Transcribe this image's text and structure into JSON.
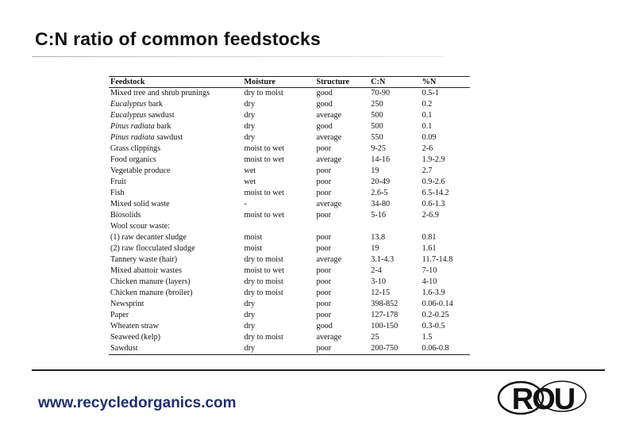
{
  "title": "C:N ratio of common feedstocks",
  "table": {
    "headers": [
      "Feedstock",
      "Moisture",
      "Structure",
      "C:N",
      "%N"
    ],
    "rows": [
      {
        "pre": "Mixed tree and shrub prunings",
        "italic": "",
        "post": "",
        "moisture": "dry to moist",
        "structure": "good",
        "cn": "70-90",
        "n": "0.5-1"
      },
      {
        "pre": "",
        "italic": "Eucalyptus",
        "post": " bark",
        "moisture": "dry",
        "structure": "good",
        "cn": "250",
        "n": "0.2"
      },
      {
        "pre": "",
        "italic": "Eucalyptus",
        "post": " sawdust",
        "moisture": "dry",
        "structure": "average",
        "cn": "500",
        "n": "0.1"
      },
      {
        "pre": "",
        "italic": "Pinus radiata",
        "post": " bark",
        "moisture": "dry",
        "structure": "good",
        "cn": "500",
        "n": "0.1"
      },
      {
        "pre": "",
        "italic": "Pinus radiata",
        "post": " sawdust",
        "moisture": "dry",
        "structure": "average",
        "cn": "550",
        "n": "0.09"
      },
      {
        "pre": "Grass clippings",
        "italic": "",
        "post": "",
        "moisture": "moist to wet",
        "structure": "poor",
        "cn": "9-25",
        "n": "2-6"
      },
      {
        "pre": "Food organics",
        "italic": "",
        "post": "",
        "moisture": "moist to wet",
        "structure": "average",
        "cn": "14-16",
        "n": "1.9-2.9"
      },
      {
        "pre": "Vegetable produce",
        "italic": "",
        "post": "",
        "moisture": "wet",
        "structure": "poor",
        "cn": "19",
        "n": "2.7"
      },
      {
        "pre": "Fruit",
        "italic": "",
        "post": "",
        "moisture": "wet",
        "structure": "poor",
        "cn": "20-49",
        "n": "0.9-2.6"
      },
      {
        "pre": "Fish",
        "italic": "",
        "post": "",
        "moisture": "moist to wet",
        "structure": "poor",
        "cn": "2.6-5",
        "n": "6.5-14.2"
      },
      {
        "pre": "Mixed solid waste",
        "italic": "",
        "post": "",
        "moisture": "-",
        "structure": "average",
        "cn": "34-80",
        "n": "0.6-1.3"
      },
      {
        "pre": "Biosolids",
        "italic": "",
        "post": "",
        "moisture": "moist to wet",
        "structure": "poor",
        "cn": "5-16",
        "n": "2-6.9"
      },
      {
        "pre": "Wool scour waste:",
        "italic": "",
        "post": "",
        "moisture": "",
        "structure": "",
        "cn": "",
        "n": ""
      },
      {
        "pre": "(1) raw decanter sludge",
        "italic": "",
        "post": "",
        "moisture": "moist",
        "structure": "poor",
        "cn": "13.8",
        "n": "0.81"
      },
      {
        "pre": "(2) raw flocculated sludge",
        "italic": "",
        "post": "",
        "moisture": "moist",
        "structure": "poor",
        "cn": "19",
        "n": "1.61"
      },
      {
        "pre": "Tannery waste (hair)",
        "italic": "",
        "post": "",
        "moisture": "dry to moist",
        "structure": "average",
        "cn": "3.1-4.3",
        "n": "11.7-14.8"
      },
      {
        "pre": "Mixed abattoir wastes",
        "italic": "",
        "post": "",
        "moisture": "moist to wet",
        "structure": "poor",
        "cn": "2-4",
        "n": "7-10"
      },
      {
        "pre": "Chicken manure (layers)",
        "italic": "",
        "post": "",
        "moisture": "dry to moist",
        "structure": "poor",
        "cn": "3-10",
        "n": "4-10"
      },
      {
        "pre": "Chicken manure (broiler)",
        "italic": "",
        "post": "",
        "moisture": "dry to moist",
        "structure": "poor",
        "cn": "12-15",
        "n": "1.6-3.9"
      },
      {
        "pre": "Newsprint",
        "italic": "",
        "post": "",
        "moisture": "dry",
        "structure": "poor",
        "cn": "398-852",
        "n": "0.06-0.14"
      },
      {
        "pre": "Paper",
        "italic": "",
        "post": "",
        "moisture": "dry",
        "structure": "poor",
        "cn": "127-178",
        "n": "0.2-0.25"
      },
      {
        "pre": "Wheaten straw",
        "italic": "",
        "post": "",
        "moisture": "dry",
        "structure": "good",
        "cn": "100-150",
        "n": "0.3-0.5"
      },
      {
        "pre": "Seaweed (kelp)",
        "italic": "",
        "post": "",
        "moisture": "dry to moist",
        "structure": "average",
        "cn": "25",
        "n": "1.5"
      },
      {
        "pre": "Sawdust",
        "italic": "",
        "post": "",
        "moisture": "dry",
        "structure": "poor",
        "cn": "200-750",
        "n": "0.06-0.8"
      }
    ]
  },
  "footer": {
    "website": "www.recycledorganics.com",
    "logo_text": "ROU",
    "logo_color": "#111111"
  },
  "colors": {
    "title": "#111111",
    "website": "#1f2f6e"
  }
}
